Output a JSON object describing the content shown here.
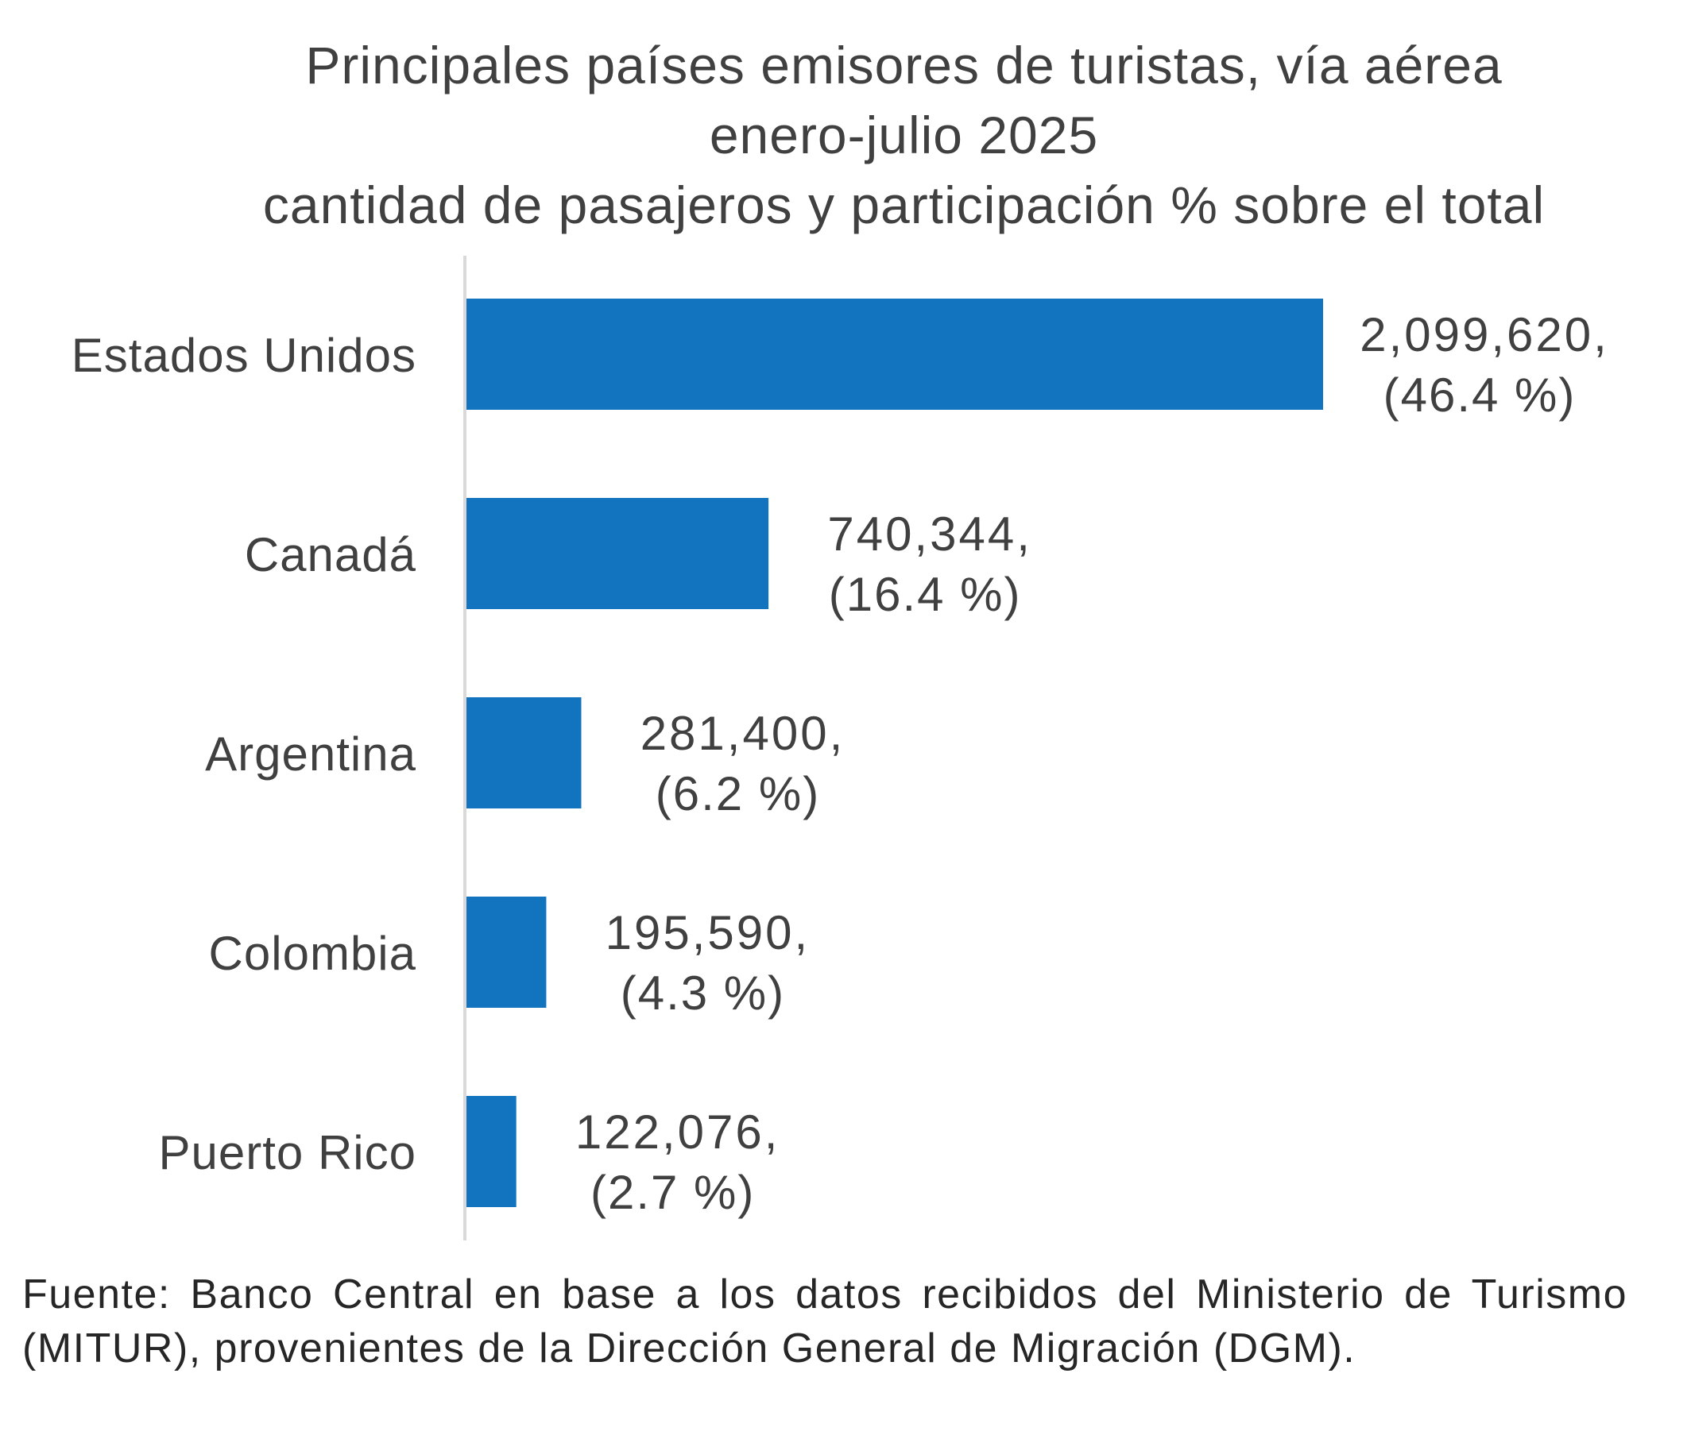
{
  "chart_data": {
    "type": "bar",
    "orientation": "horizontal",
    "title_lines": [
      "Principales países emisores de turistas, vía aérea",
      "enero-julio 2025",
      "cantidad de pasajeros y participación % sobre el total"
    ],
    "categories": [
      "Estados Unidos",
      "Canadá",
      "Argentina",
      "Colombia",
      "Puerto  Rico"
    ],
    "values": [
      2099620,
      740344,
      281400,
      195590,
      122076
    ],
    "value_labels": [
      "2,099,620,",
      "740,344,",
      "281,400,",
      "195,590,",
      "122,076,"
    ],
    "percent_labels": [
      "(46.4 %)",
      "(16.4 %)",
      "(6.2 %)",
      "(4.3 %)",
      "(2.7 %)"
    ],
    "xlabel": "",
    "ylabel": "",
    "grid": false,
    "legend": "none",
    "bar_color": "#1273BE",
    "axis_color": "#D9D9D9"
  },
  "source": "Fuente: Banco Central en base a los datos recibidos del Ministerio de Turismo (MITUR), provenientes de la Dirección General de Migración (DGM)."
}
